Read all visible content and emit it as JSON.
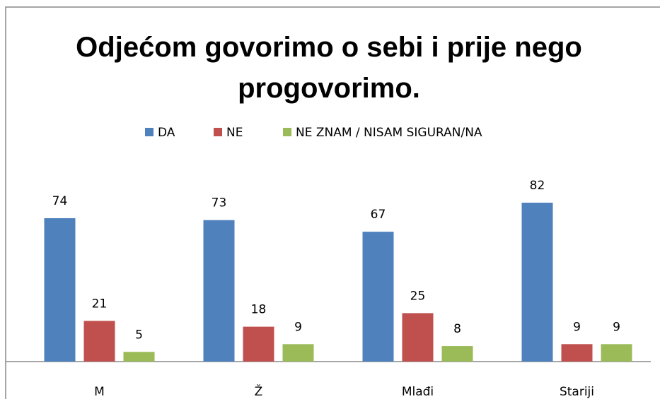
{
  "chart_data": {
    "type": "bar",
    "title": "Odjećom govorimo o sebi i prije nego progovorimo.",
    "categories": [
      "M",
      "Ž",
      "Mlađi",
      "Stariji"
    ],
    "series": [
      {
        "name": "DA",
        "color": "#4f81bd",
        "values": [
          74,
          73,
          67,
          82
        ]
      },
      {
        "name": "NE",
        "color": "#c0504d",
        "values": [
          21,
          18,
          25,
          9
        ]
      },
      {
        "name": "NE ZNAM / NISAM SIGURAN/NA",
        "color": "#9bbb59",
        "values": [
          5,
          9,
          8,
          9
        ]
      }
    ],
    "legend": "top"
  }
}
